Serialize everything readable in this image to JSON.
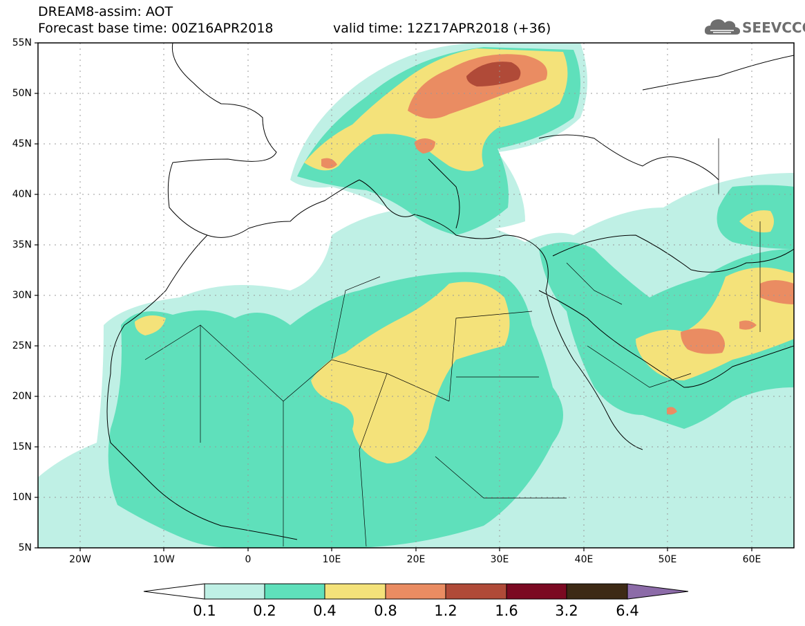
{
  "header": {
    "title": "DREAM8-assim: AOT",
    "base_time": "Forecast base time: 00Z16APR2018",
    "valid_time": "valid time: 12Z17APR2018 (+36)"
  },
  "logo": {
    "text": "SEEVCCC",
    "icon": "cloud-icon"
  },
  "map": {
    "lat_labels": [
      "55N",
      "50N",
      "45N",
      "40N",
      "35N",
      "30N",
      "25N",
      "20N",
      "15N",
      "10N",
      "5N"
    ],
    "lon_labels": [
      "20W",
      "10W",
      "0",
      "10E",
      "20E",
      "30E",
      "40E",
      "50E",
      "60E"
    ],
    "extent": {
      "lon_min": -25,
      "lon_max": 65,
      "lat_min": 5,
      "lat_max": 55
    },
    "variable": "AOT"
  },
  "colorbar": {
    "labels": [
      "0.1",
      "0.2",
      "0.4",
      "0.8",
      "1.2",
      "1.6",
      "3.2",
      "6.4"
    ],
    "colors": [
      "#ffffff",
      "#bff0e5",
      "#5fe0bb",
      "#f4e27a",
      "#ea8c62",
      "#b04a38",
      "#7b0a22",
      "#3d2a15",
      "#8c6ba8"
    ]
  }
}
